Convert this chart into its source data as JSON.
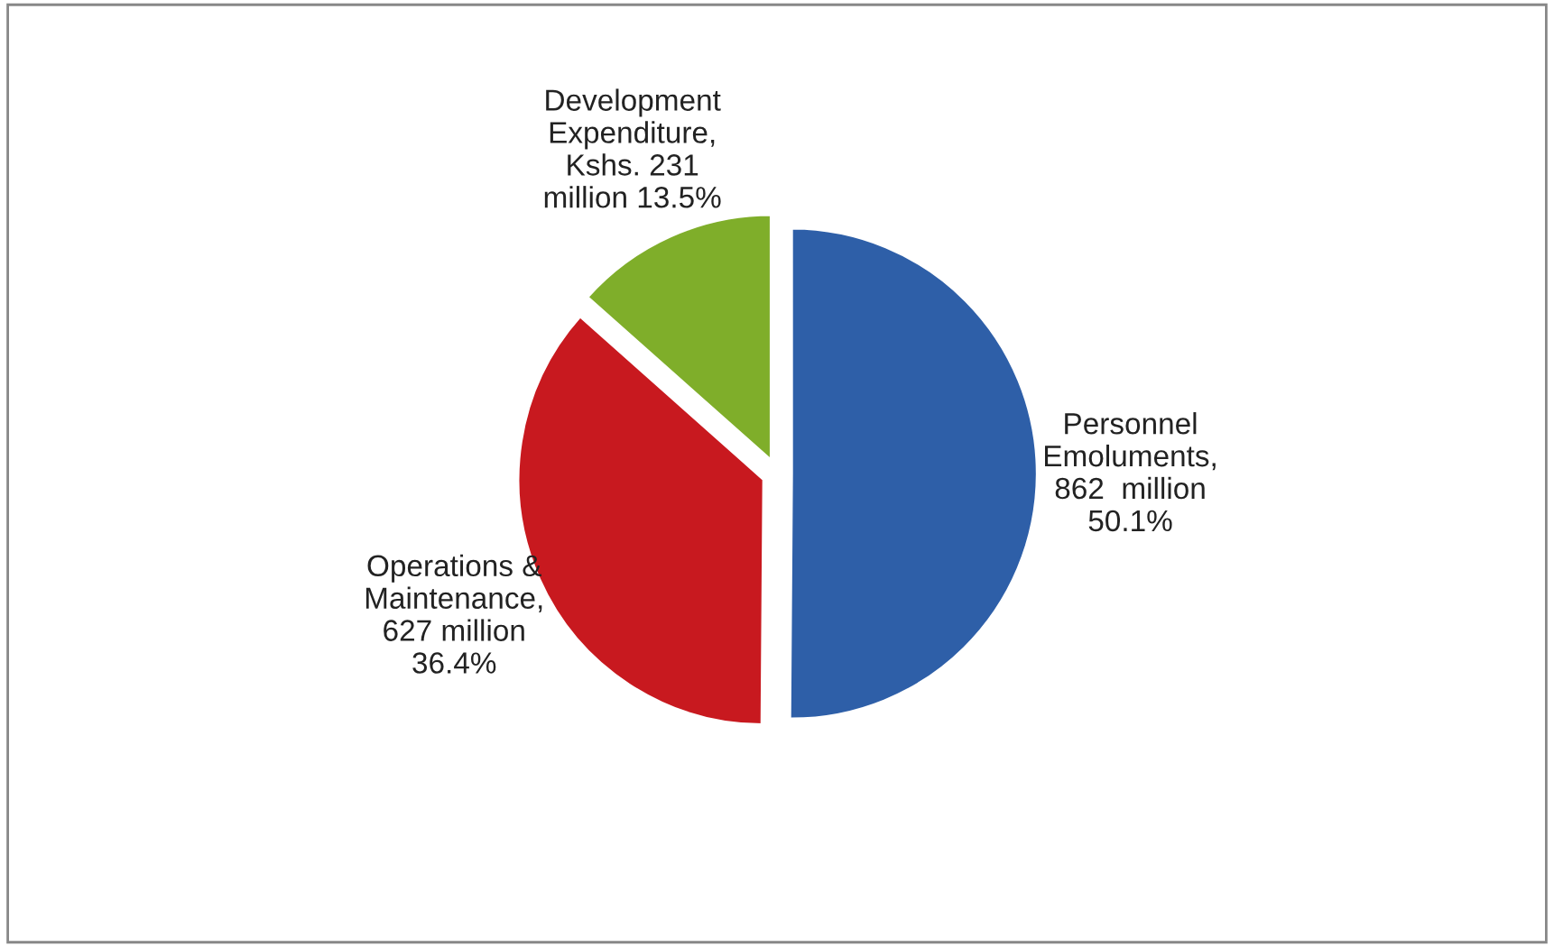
{
  "chart_data": {
    "type": "pie",
    "categories": [
      "Personnel\nEmoluments,\n862  million\n50.1%",
      "Operations &\nMaintenance,\n627 million\n36.4%",
      "Development\nExpenditure,\nKshs. 231\nmillion 13.5%"
    ],
    "values": [
      862,
      627,
      231
    ],
    "colors": [
      "#2e5fa8",
      "#c8191f",
      "#7fae2a"
    ]
  }
}
